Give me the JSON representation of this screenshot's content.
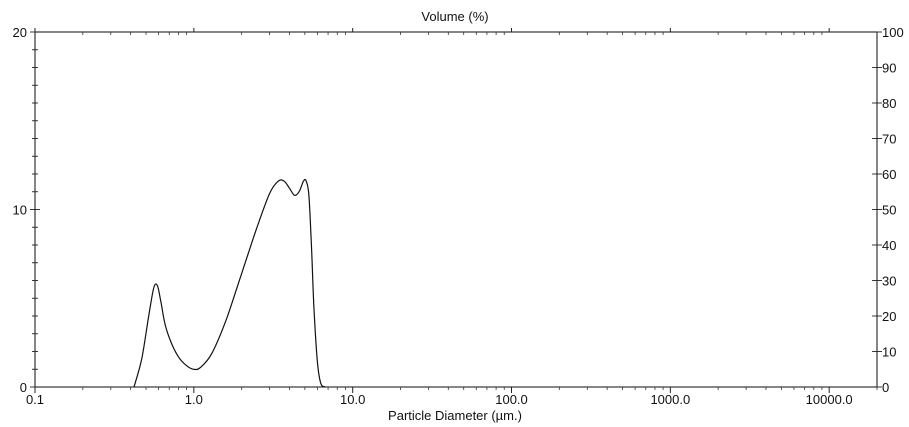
{
  "chart_data": {
    "type": "line",
    "title": "Volume (%)",
    "xlabel": "Particle Diameter (µm.)",
    "ylabel": "",
    "x_scale": "log",
    "xlim": [
      0.1,
      20000
    ],
    "ylim": [
      0,
      20
    ],
    "y2lim": [
      0,
      100
    ],
    "grid": false,
    "x_ticks": [
      {
        "value": 0.1,
        "label": "0.1"
      },
      {
        "value": 1,
        "label": "1.0"
      },
      {
        "value": 10,
        "label": "10.0"
      },
      {
        "value": 100,
        "label": "100.0"
      },
      {
        "value": 1000,
        "label": "1000.0"
      },
      {
        "value": 10000,
        "label": "10000.0"
      }
    ],
    "y_ticks": [
      {
        "value": 0,
        "label": "0"
      },
      {
        "value": 10,
        "label": "10"
      },
      {
        "value": 20,
        "label": "20"
      }
    ],
    "y2_ticks": [
      {
        "value": 0,
        "label": "0"
      },
      {
        "value": 10,
        "label": "10"
      },
      {
        "value": 20,
        "label": "20"
      },
      {
        "value": 30,
        "label": "30"
      },
      {
        "value": 40,
        "label": "40"
      },
      {
        "value": 50,
        "label": "50"
      },
      {
        "value": 60,
        "label": "60"
      },
      {
        "value": 70,
        "label": "70"
      },
      {
        "value": 80,
        "label": "80"
      },
      {
        "value": 90,
        "label": "90"
      },
      {
        "value": 100,
        "label": "100"
      }
    ],
    "series": [
      {
        "x": [
          0.42,
          0.47,
          0.52,
          0.56,
          0.59,
          0.62,
          0.66,
          0.72,
          0.8,
          0.9,
          1.0,
          1.1,
          1.3,
          1.6,
          2.0,
          2.5,
          3.0,
          3.4,
          3.7,
          4.0,
          4.3,
          4.6,
          4.9,
          5.1,
          5.3,
          5.5,
          5.7,
          6.0,
          6.3,
          6.7
        ],
        "y": [
          0,
          1.6,
          4.0,
          5.6,
          5.7,
          4.8,
          3.5,
          2.5,
          1.7,
          1.2,
          1.0,
          1.1,
          1.9,
          3.8,
          6.4,
          9.0,
          10.9,
          11.6,
          11.6,
          11.2,
          10.8,
          11.0,
          11.6,
          11.6,
          10.8,
          8.0,
          4.5,
          1.4,
          0.2,
          0
        ]
      }
    ]
  }
}
